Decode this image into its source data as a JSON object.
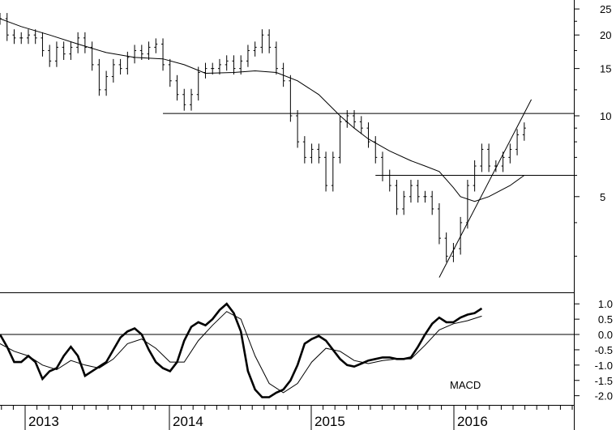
{
  "chart_data": [
    {
      "type": "ohlc",
      "scale": "log",
      "ylim": [
        2.2,
        27
      ],
      "xlim": [
        2012.85,
        2016.9
      ],
      "yticks": [
        5,
        10,
        15,
        20,
        25
      ],
      "grid": false,
      "price": [
        [
          2012.85,
          23
        ],
        [
          2012.9,
          20
        ],
        [
          2012.95,
          19.5
        ],
        [
          2013.0,
          19.5
        ],
        [
          2013.05,
          20
        ],
        [
          2013.1,
          19.5
        ],
        [
          2013.15,
          17.5
        ],
        [
          2013.2,
          16
        ],
        [
          2013.25,
          18
        ],
        [
          2013.3,
          17
        ],
        [
          2013.35,
          18
        ],
        [
          2013.4,
          19.5
        ],
        [
          2013.45,
          18
        ],
        [
          2013.5,
          15.5
        ],
        [
          2013.55,
          12.5
        ],
        [
          2013.6,
          14
        ],
        [
          2013.65,
          15.5
        ],
        [
          2013.7,
          15
        ],
        [
          2013.75,
          16.5
        ],
        [
          2013.8,
          17.5
        ],
        [
          2013.85,
          17
        ],
        [
          2013.9,
          18
        ],
        [
          2013.95,
          18.5
        ],
        [
          2014.0,
          15.5
        ],
        [
          2014.05,
          13.5
        ],
        [
          2014.1,
          12
        ],
        [
          2014.15,
          11
        ],
        [
          2014.2,
          12
        ],
        [
          2014.25,
          14.5
        ],
        [
          2014.3,
          15
        ],
        [
          2014.35,
          15
        ],
        [
          2014.4,
          15.5
        ],
        [
          2014.45,
          16
        ],
        [
          2014.5,
          15
        ],
        [
          2014.55,
          16
        ],
        [
          2014.6,
          17.5
        ],
        [
          2014.65,
          18
        ],
        [
          2014.7,
          20
        ],
        [
          2014.75,
          18
        ],
        [
          2014.8,
          15
        ],
        [
          2014.85,
          13.5
        ],
        [
          2014.9,
          10
        ],
        [
          2014.95,
          8
        ],
        [
          2015.0,
          7
        ],
        [
          2015.05,
          7.5
        ],
        [
          2015.1,
          7
        ],
        [
          2015.15,
          5.5
        ],
        [
          2015.2,
          7
        ],
        [
          2015.25,
          9.5
        ],
        [
          2015.3,
          10
        ],
        [
          2015.35,
          9.5
        ],
        [
          2015.4,
          9
        ],
        [
          2015.45,
          8
        ],
        [
          2015.5,
          7
        ],
        [
          2015.55,
          6
        ],
        [
          2015.6,
          5.5
        ],
        [
          2015.65,
          4.5
        ],
        [
          2015.7,
          5
        ],
        [
          2015.75,
          5.5
        ],
        [
          2015.8,
          5
        ],
        [
          2015.85,
          5
        ],
        [
          2015.9,
          4.5
        ],
        [
          2015.95,
          3.5
        ],
        [
          2016.0,
          3
        ],
        [
          2016.05,
          3.2
        ],
        [
          2016.1,
          4
        ],
        [
          2016.15,
          5.5
        ],
        [
          2016.2,
          6.5
        ],
        [
          2016.25,
          7.5
        ],
        [
          2016.3,
          6.5
        ],
        [
          2016.35,
          6.5
        ],
        [
          2016.4,
          7
        ],
        [
          2016.45,
          7.5
        ],
        [
          2016.5,
          8.5
        ],
        [
          2016.55,
          9
        ]
      ],
      "moving_average": [
        [
          2012.85,
          23
        ],
        [
          2013.0,
          21.5
        ],
        [
          2013.2,
          20
        ],
        [
          2013.4,
          18.5
        ],
        [
          2013.6,
          17.2
        ],
        [
          2013.8,
          16.5
        ],
        [
          2014.0,
          16.3
        ],
        [
          2014.15,
          15.5
        ],
        [
          2014.3,
          14.4
        ],
        [
          2014.5,
          14.5
        ],
        [
          2014.65,
          14.7
        ],
        [
          2014.8,
          14.5
        ],
        [
          2014.95,
          13.5
        ],
        [
          2015.1,
          12
        ],
        [
          2015.25,
          10
        ],
        [
          2015.35,
          9
        ],
        [
          2015.45,
          8.2
        ],
        [
          2015.6,
          7.4
        ],
        [
          2015.75,
          6.8
        ],
        [
          2015.85,
          6.5
        ],
        [
          2015.95,
          6.2
        ],
        [
          2016.05,
          5.4
        ],
        [
          2016.1,
          5
        ],
        [
          2016.2,
          4.8
        ],
        [
          2016.3,
          5
        ],
        [
          2016.45,
          5.5
        ],
        [
          2016.55,
          6
        ]
      ],
      "lines": [
        {
          "kind": "horizontal",
          "y": 10.2,
          "x_from": 2014.0,
          "x_to": 2016.9
        },
        {
          "kind": "horizontal",
          "y": 6,
          "x_from": 2015.5,
          "x_to": 2016.9
        },
        {
          "kind": "trend",
          "points": [
            [
              2015.95,
              2.5
            ],
            [
              2016.6,
              11.5
            ]
          ]
        }
      ]
    },
    {
      "type": "line",
      "title": "MACD",
      "ylim": [
        -2.3,
        1.35
      ],
      "xlim": [
        2012.85,
        2016.9
      ],
      "yticks": [
        1.0,
        0.5,
        0.0,
        -0.5,
        -1.0,
        -1.5,
        -2.0
      ],
      "ytick_labels": [
        "1.0",
        "0.5",
        "0.0",
        "-0.5",
        "-1.0",
        "-1.5",
        "-2.0"
      ],
      "zero_line": true,
      "series": [
        {
          "style": "thick",
          "values": [
            [
              2012.85,
              0
            ],
            [
              2012.9,
              -0.4
            ],
            [
              2012.95,
              -0.9
            ],
            [
              2013.0,
              -0.9
            ],
            [
              2013.05,
              -0.7
            ],
            [
              2013.1,
              -0.9
            ],
            [
              2013.15,
              -1.45
            ],
            [
              2013.2,
              -1.2
            ],
            [
              2013.25,
              -1.1
            ],
            [
              2013.3,
              -0.7
            ],
            [
              2013.35,
              -0.4
            ],
            [
              2013.4,
              -0.7
            ],
            [
              2013.45,
              -1.35
            ],
            [
              2013.5,
              -1.2
            ],
            [
              2013.55,
              -1.05
            ],
            [
              2013.6,
              -0.9
            ],
            [
              2013.65,
              -0.5
            ],
            [
              2013.7,
              -0.1
            ],
            [
              2013.75,
              0.1
            ],
            [
              2013.8,
              0.2
            ],
            [
              2013.85,
              0.0
            ],
            [
              2013.9,
              -0.5
            ],
            [
              2013.95,
              -0.9
            ],
            [
              2014.0,
              -1.1
            ],
            [
              2014.05,
              -1.2
            ],
            [
              2014.1,
              -0.9
            ],
            [
              2014.15,
              -0.2
            ],
            [
              2014.2,
              0.25
            ],
            [
              2014.25,
              0.4
            ],
            [
              2014.3,
              0.3
            ],
            [
              2014.35,
              0.5
            ],
            [
              2014.4,
              0.8
            ],
            [
              2014.45,
              1.0
            ],
            [
              2014.5,
              0.7
            ],
            [
              2014.55,
              0.1
            ],
            [
              2014.6,
              -1.2
            ],
            [
              2014.65,
              -1.8
            ],
            [
              2014.7,
              -2.05
            ],
            [
              2014.75,
              -2.05
            ],
            [
              2014.8,
              -1.9
            ],
            [
              2014.85,
              -1.8
            ],
            [
              2014.9,
              -1.5
            ],
            [
              2014.95,
              -1.0
            ],
            [
              2015.0,
              -0.3
            ],
            [
              2015.05,
              -0.15
            ],
            [
              2015.1,
              -0.05
            ],
            [
              2015.15,
              -0.2
            ],
            [
              2015.2,
              -0.5
            ],
            [
              2015.25,
              -0.8
            ],
            [
              2015.3,
              -1.0
            ],
            [
              2015.35,
              -1.05
            ],
            [
              2015.4,
              -0.95
            ],
            [
              2015.45,
              -0.85
            ],
            [
              2015.5,
              -0.8
            ],
            [
              2015.55,
              -0.75
            ],
            [
              2015.6,
              -0.75
            ],
            [
              2015.65,
              -0.8
            ],
            [
              2015.7,
              -0.8
            ],
            [
              2015.75,
              -0.75
            ],
            [
              2015.8,
              -0.4
            ],
            [
              2015.85,
              0.0
            ],
            [
              2015.9,
              0.35
            ],
            [
              2015.95,
              0.55
            ],
            [
              2016.0,
              0.4
            ],
            [
              2016.05,
              0.4
            ],
            [
              2016.1,
              0.55
            ],
            [
              2016.15,
              0.65
            ],
            [
              2016.2,
              0.7
            ],
            [
              2016.25,
              0.85
            ]
          ]
        },
        {
          "style": "thin",
          "values": [
            [
              2012.85,
              -0.3
            ],
            [
              2012.95,
              -0.55
            ],
            [
              2013.05,
              -0.7
            ],
            [
              2013.15,
              -1.0
            ],
            [
              2013.25,
              -1.15
            ],
            [
              2013.35,
              -0.85
            ],
            [
              2013.45,
              -1.0
            ],
            [
              2013.55,
              -1.1
            ],
            [
              2013.65,
              -0.8
            ],
            [
              2013.75,
              -0.3
            ],
            [
              2013.85,
              -0.15
            ],
            [
              2013.95,
              -0.45
            ],
            [
              2014.05,
              -0.9
            ],
            [
              2014.15,
              -0.9
            ],
            [
              2014.25,
              -0.2
            ],
            [
              2014.35,
              0.3
            ],
            [
              2014.45,
              0.75
            ],
            [
              2014.55,
              0.5
            ],
            [
              2014.65,
              -0.7
            ],
            [
              2014.75,
              -1.6
            ],
            [
              2014.85,
              -1.9
            ],
            [
              2014.95,
              -1.6
            ],
            [
              2015.05,
              -0.9
            ],
            [
              2015.15,
              -0.45
            ],
            [
              2015.25,
              -0.55
            ],
            [
              2015.35,
              -0.85
            ],
            [
              2015.45,
              -0.95
            ],
            [
              2015.55,
              -0.85
            ],
            [
              2015.65,
              -0.8
            ],
            [
              2015.75,
              -0.8
            ],
            [
              2015.85,
              -0.35
            ],
            [
              2015.95,
              0.15
            ],
            [
              2016.05,
              0.35
            ],
            [
              2016.15,
              0.45
            ],
            [
              2016.25,
              0.6
            ]
          ]
        }
      ]
    }
  ],
  "x_axis": {
    "ticks": [
      2013,
      2014,
      2015,
      2016
    ],
    "labels": [
      "2013",
      "2014",
      "2015",
      "2016"
    ]
  }
}
